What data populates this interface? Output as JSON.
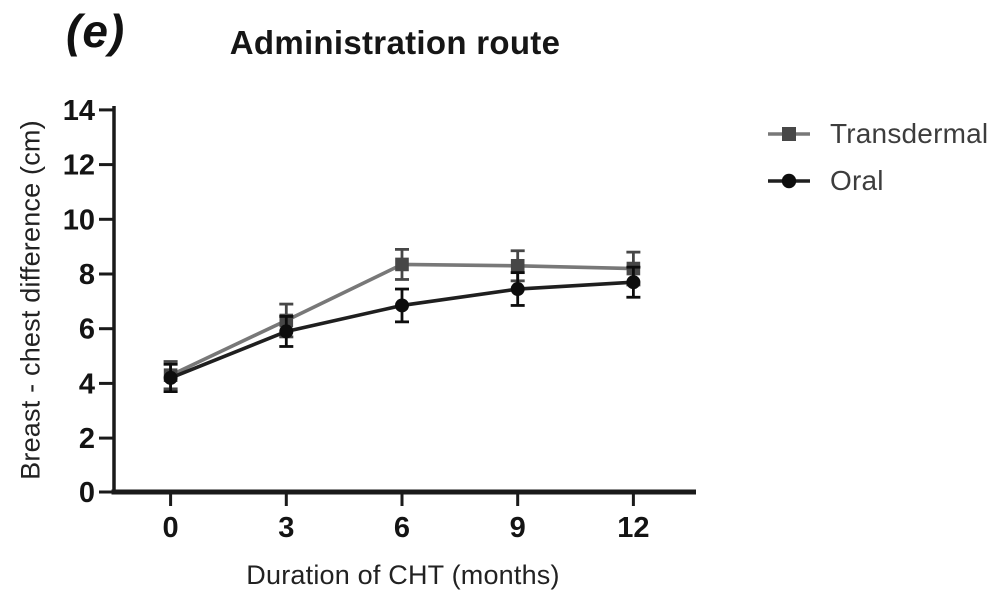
{
  "figure": {
    "panel_label": "(e)",
    "title": "Administration route"
  },
  "legend": {
    "items": [
      {
        "label": "Transdermal",
        "marker": "square",
        "line_color": "#787878",
        "marker_color": "#474747"
      },
      {
        "label": "Oral",
        "marker": "circle",
        "line_color": "#1f1f1f",
        "marker_color": "#0d0d0d"
      }
    ]
  },
  "chart_data": {
    "type": "line",
    "title": "Administration route",
    "xlabel": "Duration of CHT (months)",
    "ylabel": "Breast - chest difference (cm)",
    "x": [
      0,
      3,
      6,
      9,
      12
    ],
    "x_tick_labels": [
      "0",
      "3",
      "6",
      "9",
      "12"
    ],
    "y_ticks": [
      0,
      2,
      4,
      6,
      8,
      10,
      12,
      14
    ],
    "xlim": [
      0,
      13.6
    ],
    "ylim": [
      0,
      14
    ],
    "grid": false,
    "legend_position": "right",
    "error_bars": true,
    "series": [
      {
        "name": "Transdermal",
        "marker": "square",
        "line_color": "#787878",
        "marker_color": "#474747",
        "values": [
          4.3,
          6.3,
          8.35,
          8.3,
          8.2
        ],
        "errors": [
          0.5,
          0.6,
          0.55,
          0.55,
          0.6
        ]
      },
      {
        "name": "Oral",
        "marker": "circle",
        "line_color": "#1f1f1f",
        "marker_color": "#0d0d0d",
        "values": [
          4.2,
          5.9,
          6.85,
          7.45,
          7.7
        ],
        "errors": [
          0.5,
          0.55,
          0.6,
          0.6,
          0.55
        ]
      }
    ],
    "axis_color": "#1a1a1a",
    "tick_label_color": "#141414"
  }
}
